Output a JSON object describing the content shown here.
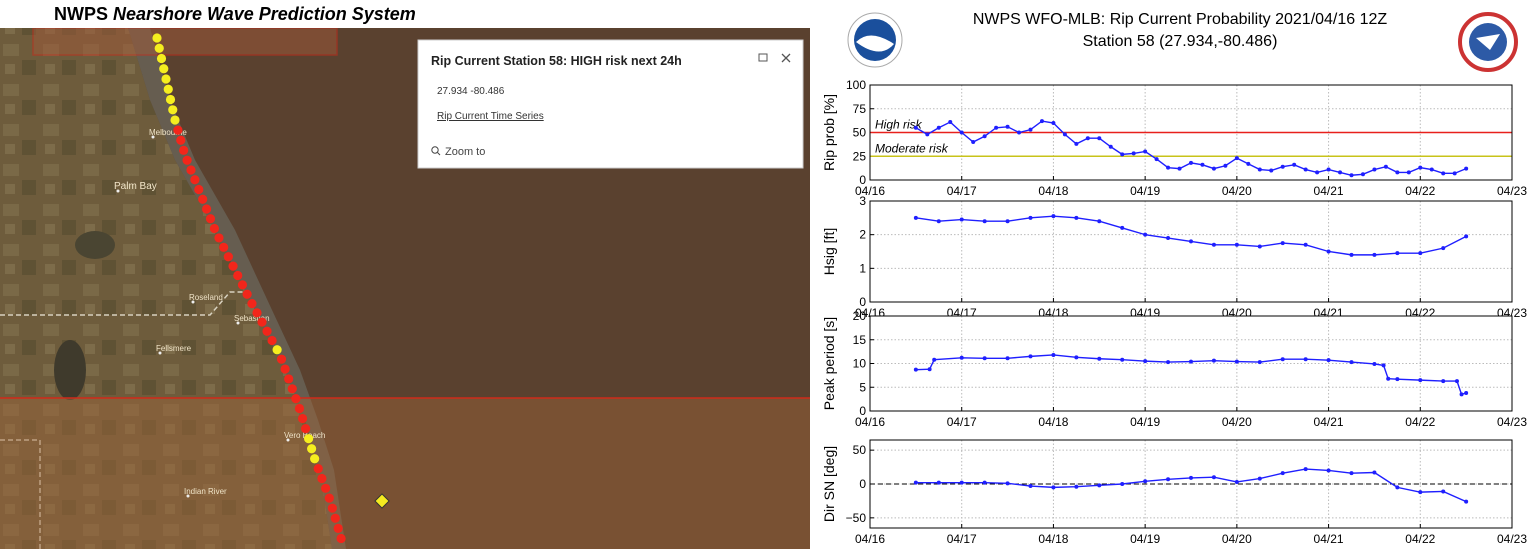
{
  "header": {
    "title_bold": "NWPS",
    "title_italic": "Nearshore Wave Prediction System"
  },
  "map": {
    "places": [
      "Melbourne",
      "Palm Bay",
      "Roseland",
      "Sebastian",
      "Fellsmere",
      "Vero Beach",
      "Indian River"
    ]
  },
  "popup": {
    "title": "Rip Current Station 58: HIGH risk next 24h",
    "coords": "27.934 -80.486",
    "link": "Rip Current Time Series",
    "zoom": "Zoom to"
  },
  "chart_data": [
    {
      "type": "line",
      "title": "NWPS WFO-MLB: Rip Current Probability 2021/04/16 12Z",
      "subtitle": "Station 58 (27.934,-80.486)",
      "ylabel": "Rip prob [%]",
      "color": "#1f1fff",
      "grid": true,
      "x": [
        16.5,
        16.625,
        16.75,
        16.875,
        17,
        17.125,
        17.25,
        17.375,
        17.5,
        17.625,
        17.75,
        17.875,
        18,
        18.125,
        18.25,
        18.375,
        18.5,
        18.625,
        18.75,
        18.875,
        19,
        19.125,
        19.25,
        19.375,
        19.5,
        19.625,
        19.75,
        19.875,
        20,
        20.125,
        20.25,
        20.375,
        20.5,
        20.625,
        20.75,
        20.875,
        21,
        21.125,
        21.25,
        21.375,
        21.5,
        21.625,
        21.75,
        21.875,
        22,
        22.125,
        22.25,
        22.375,
        22.5
      ],
      "values": [
        55,
        48,
        55,
        61,
        50,
        40,
        46,
        55,
        56,
        50,
        53,
        62,
        60,
        48,
        38,
        44,
        44,
        35,
        27,
        28,
        30,
        22,
        13,
        12,
        18,
        16,
        12,
        15,
        23,
        17,
        11,
        10,
        14,
        16,
        11,
        8,
        11,
        8,
        5,
        6,
        11,
        14,
        8,
        8,
        13,
        11,
        7,
        7,
        12
      ],
      "thresholds": [
        {
          "label": "High risk",
          "value": 50,
          "color": "#e8201c"
        },
        {
          "label": "Moderate risk",
          "value": 25,
          "color": "#c8c31a"
        }
      ],
      "xlim": [
        16,
        23
      ],
      "xticks": [
        {
          "value": 16,
          "label": "04/16"
        },
        {
          "value": 17,
          "label": "04/17"
        },
        {
          "value": 18,
          "label": "04/18"
        },
        {
          "value": 19,
          "label": "04/19"
        },
        {
          "value": 20,
          "label": "04/20"
        },
        {
          "value": 21,
          "label": "04/21"
        },
        {
          "value": 22,
          "label": "04/22"
        },
        {
          "value": 23,
          "label": "04/23"
        }
      ],
      "ylim": [
        0,
        100
      ],
      "yticks": [
        0,
        25,
        50,
        75,
        100
      ]
    },
    {
      "type": "line",
      "ylabel": "Hsig [ft]",
      "color": "#1f1fff",
      "grid": true,
      "x": [
        16.5,
        16.75,
        17,
        17.25,
        17.5,
        17.75,
        18,
        18.25,
        18.5,
        18.75,
        19,
        19.25,
        19.5,
        19.75,
        20,
        20.25,
        20.5,
        20.75,
        21,
        21.25,
        21.5,
        21.75,
        22,
        22.25,
        22.5
      ],
      "values": [
        2.5,
        2.4,
        2.45,
        2.4,
        2.4,
        2.5,
        2.55,
        2.5,
        2.4,
        2.2,
        2.0,
        1.9,
        1.8,
        1.7,
        1.7,
        1.65,
        1.75,
        1.7,
        1.5,
        1.4,
        1.4,
        1.45,
        1.45,
        1.6,
        1.95
      ],
      "xlim": [
        16,
        23
      ],
      "xticks": [
        {
          "value": 16,
          "label": "04/16"
        },
        {
          "value": 17,
          "label": "04/17"
        },
        {
          "value": 18,
          "label": "04/18"
        },
        {
          "value": 19,
          "label": "04/19"
        },
        {
          "value": 20,
          "label": "04/20"
        },
        {
          "value": 21,
          "label": "04/21"
        },
        {
          "value": 22,
          "label": "04/22"
        },
        {
          "value": 23,
          "label": "04/23"
        }
      ],
      "ylim": [
        0,
        3
      ],
      "yticks": [
        0,
        1,
        2,
        3
      ]
    },
    {
      "type": "line",
      "ylabel": "Peak period [s]",
      "color": "#1f1fff",
      "grid": true,
      "x": [
        16.5,
        16.65,
        16.7,
        17,
        17.25,
        17.5,
        17.75,
        18,
        18.25,
        18.5,
        18.75,
        19,
        19.25,
        19.5,
        19.75,
        20,
        20.25,
        20.5,
        20.75,
        21,
        21.25,
        21.5,
        21.6,
        21.65,
        21.75,
        22,
        22.25,
        22.4,
        22.45,
        22.5
      ],
      "values": [
        8.7,
        8.8,
        10.8,
        11.2,
        11.1,
        11.1,
        11.5,
        11.8,
        11.3,
        11,
        10.8,
        10.5,
        10.3,
        10.4,
        10.6,
        10.4,
        10.3,
        10.9,
        10.9,
        10.7,
        10.3,
        9.9,
        9.6,
        6.8,
        6.7,
        6.5,
        6.3,
        6.3,
        3.5,
        3.8
      ],
      "xlim": [
        16,
        23
      ],
      "xticks": [
        {
          "value": 16,
          "label": "04/16"
        },
        {
          "value": 17,
          "label": "04/17"
        },
        {
          "value": 18,
          "label": "04/18"
        },
        {
          "value": 19,
          "label": "04/19"
        },
        {
          "value": 20,
          "label": "04/20"
        },
        {
          "value": 21,
          "label": "04/21"
        },
        {
          "value": 22,
          "label": "04/22"
        },
        {
          "value": 23,
          "label": "04/23"
        }
      ],
      "ylim": [
        0,
        20
      ],
      "yticks": [
        0,
        5,
        10,
        15,
        20
      ]
    },
    {
      "type": "line",
      "ylabel": "Dir SN [deg]",
      "color": "#1f1fff",
      "grid": true,
      "zero_line": true,
      "x": [
        16.5,
        16.75,
        17,
        17.25,
        17.5,
        17.75,
        18,
        18.25,
        18.5,
        18.75,
        19,
        19.25,
        19.5,
        19.75,
        20,
        20.25,
        20.5,
        20.75,
        21,
        21.25,
        21.5,
        21.75,
        22,
        22.25,
        22.5
      ],
      "values": [
        2,
        2,
        2,
        2,
        1,
        -3,
        -5,
        -4,
        -2,
        0,
        4,
        7,
        9,
        10,
        3,
        8,
        16,
        22,
        20,
        16,
        17,
        -5,
        -12,
        -11,
        -26
      ],
      "xlim": [
        16,
        23
      ],
      "xticks": [
        {
          "value": 16,
          "label": "04/16"
        },
        {
          "value": 17,
          "label": "04/17"
        },
        {
          "value": 18,
          "label": "04/18"
        },
        {
          "value": 19,
          "label": "04/19"
        },
        {
          "value": 20,
          "label": "04/20"
        },
        {
          "value": 21,
          "label": "04/21"
        },
        {
          "value": 22,
          "label": "04/22"
        },
        {
          "value": 23,
          "label": "04/23"
        }
      ],
      "ylim": [
        -65,
        65
      ],
      "yticks": [
        {
          "value": -50,
          "label": "−50"
        },
        0,
        50
      ]
    }
  ]
}
